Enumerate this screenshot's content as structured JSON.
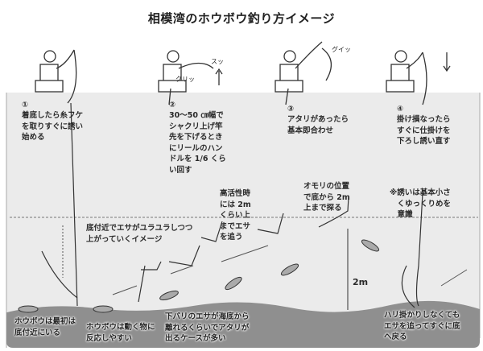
{
  "title": "相模湾のホウボウ釣り方イメージ",
  "steps": [
    {
      "number": "①",
      "text": "着底したら糸フケ\nを取りすぐに誘い\n始める"
    },
    {
      "number": "②",
      "text": "30～50 ㎝幅で\nシャクリ上げ竿\n先を下げるとき\nにリールのハン\nドルを 1/6 くら\nい回す"
    },
    {
      "number": "③",
      "text": "アタリがあったら\n基本即合わせ"
    },
    {
      "number": "④",
      "text": "掛け損なったら\nすぐに仕掛けを\n下ろし誘い直す"
    }
  ],
  "annotations": {
    "rising_image": "底付近でエサがユラユラしつつ\n上がっていくイメージ",
    "high_activity": "高活性時\nには 2m\nくらい上\nまでエサ\nを追う",
    "sinker_position": "オモリの位置\nで底から 2m\n上まで探る",
    "lure_note": "※誘いは基本小さ\n　くゆっくりめを\n　意識",
    "depth_label": "2m",
    "fish_start": "ホウボウは最初は\n底付近にいる",
    "fish_react": "ホウボウは動く物に\n反応しやすい",
    "bite_case": "下バリのエサが海底から\n離れるくらいでアタリが\n出るケースが多い",
    "fish_return": "ハリ掛かりしなくても\nエサを追ってすぐに底\nへ戻る"
  },
  "sound_effects": [
    "クリッ",
    "グイッ",
    "スッ"
  ],
  "colors": {
    "water": "#ebebeb",
    "seabed": "#8f8f8f",
    "line": "#333333"
  }
}
